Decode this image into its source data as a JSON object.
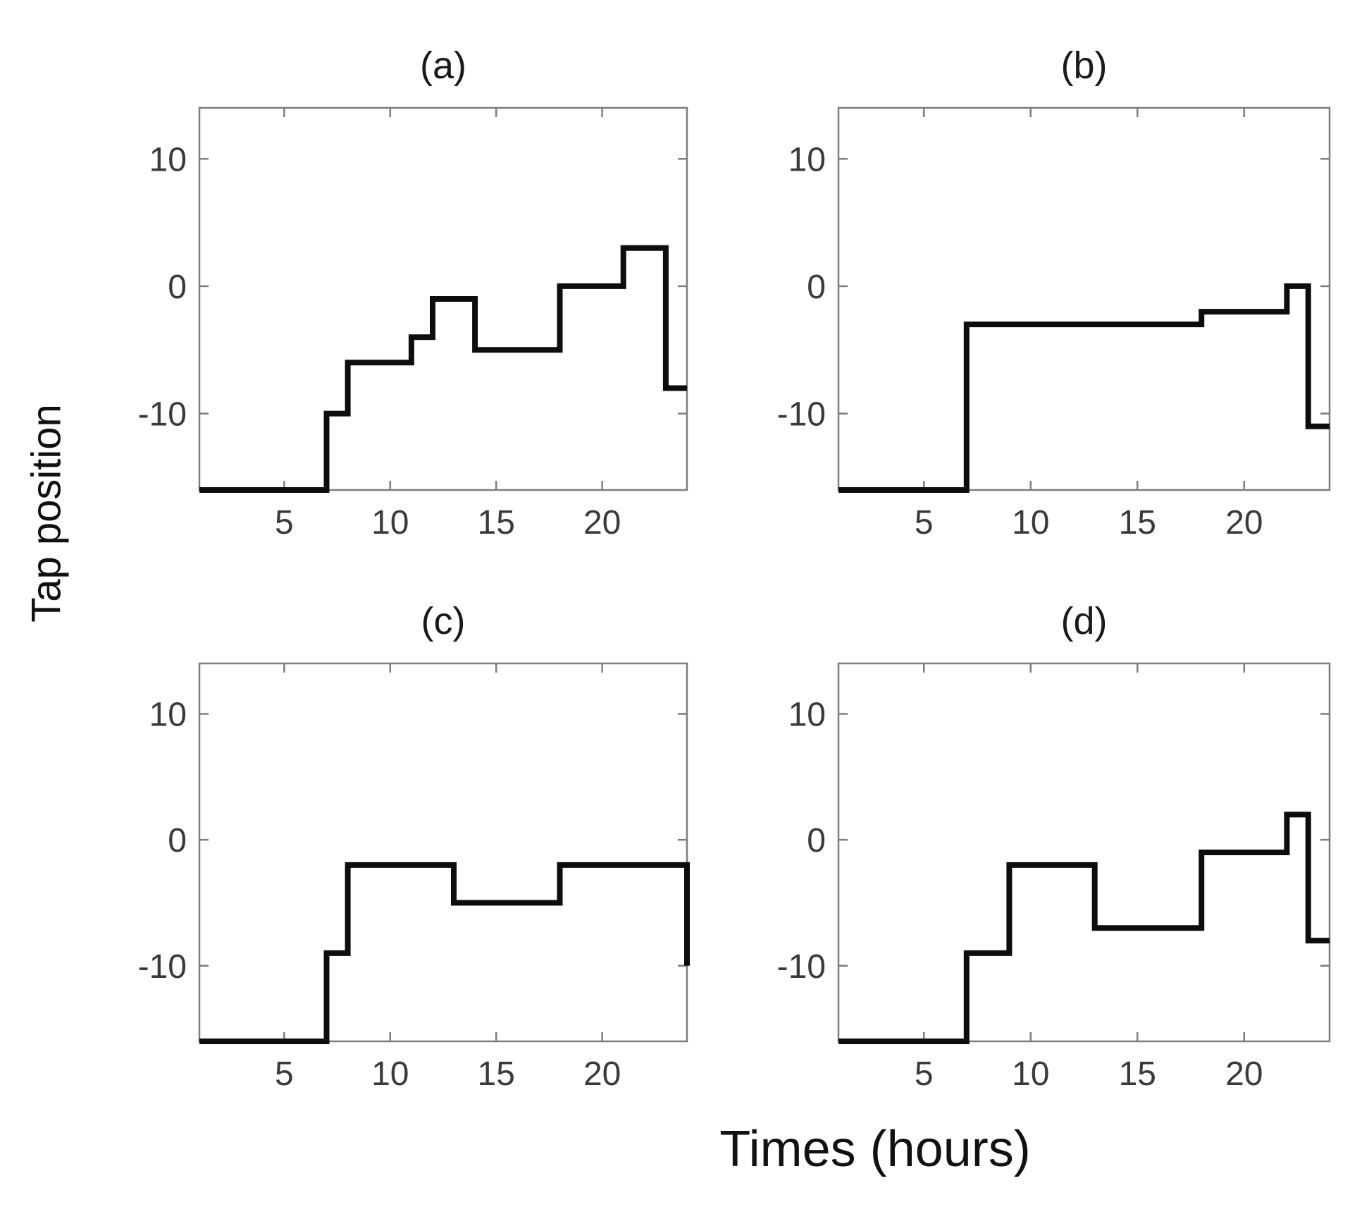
{
  "figure": {
    "ylabel": "Tap position",
    "xlabel": "Times (hours)",
    "colors": {
      "line": "#0d0d0d",
      "spine": "#7d7d7d",
      "tick_label": "#3a3a3a",
      "title": "#1a1a1a",
      "background": "#ffffff"
    }
  },
  "chart_data": [
    {
      "id": "a",
      "type": "line",
      "subtype": "stairs",
      "title": "(a)",
      "xlim": [
        1,
        24
      ],
      "ylim": [
        -16,
        14
      ],
      "x_ticks": [
        5,
        10,
        15,
        20
      ],
      "y_ticks": [
        -10,
        0,
        10
      ],
      "grid": false,
      "legend": null,
      "step_points": [
        [
          1,
          -16
        ],
        [
          7,
          -10
        ],
        [
          8,
          -6
        ],
        [
          11,
          -4
        ],
        [
          12,
          -1
        ],
        [
          14,
          -5
        ],
        [
          18,
          0
        ],
        [
          21,
          3
        ],
        [
          23,
          -8
        ],
        [
          24,
          -8
        ]
      ]
    },
    {
      "id": "b",
      "type": "line",
      "subtype": "stairs",
      "title": "(b)",
      "xlim": [
        1,
        24
      ],
      "ylim": [
        -16,
        14
      ],
      "x_ticks": [
        5,
        10,
        15,
        20
      ],
      "y_ticks": [
        -10,
        0,
        10
      ],
      "grid": false,
      "legend": null,
      "step_points": [
        [
          1,
          -16
        ],
        [
          7,
          -3
        ],
        [
          18,
          -2
        ],
        [
          22,
          0
        ],
        [
          23,
          -11
        ],
        [
          24,
          -11
        ]
      ]
    },
    {
      "id": "c",
      "type": "line",
      "subtype": "stairs",
      "title": "(c)",
      "xlim": [
        1,
        24
      ],
      "ylim": [
        -16,
        14
      ],
      "x_ticks": [
        5,
        10,
        15,
        20
      ],
      "y_ticks": [
        -10,
        0,
        10
      ],
      "grid": false,
      "legend": null,
      "step_points": [
        [
          1,
          -16
        ],
        [
          7,
          -9
        ],
        [
          8,
          -2
        ],
        [
          13,
          -5
        ],
        [
          18,
          -2
        ],
        [
          24,
          -10
        ]
      ]
    },
    {
      "id": "d",
      "type": "line",
      "subtype": "stairs",
      "title": "(d)",
      "xlim": [
        1,
        24
      ],
      "ylim": [
        -16,
        14
      ],
      "x_ticks": [
        5,
        10,
        15,
        20
      ],
      "y_ticks": [
        -10,
        0,
        10
      ],
      "grid": false,
      "legend": null,
      "step_points": [
        [
          1,
          -16
        ],
        [
          7,
          -9
        ],
        [
          9,
          -2
        ],
        [
          13,
          -7
        ],
        [
          18,
          -1
        ],
        [
          22,
          2
        ],
        [
          23,
          -8
        ],
        [
          24,
          -8
        ]
      ]
    }
  ]
}
